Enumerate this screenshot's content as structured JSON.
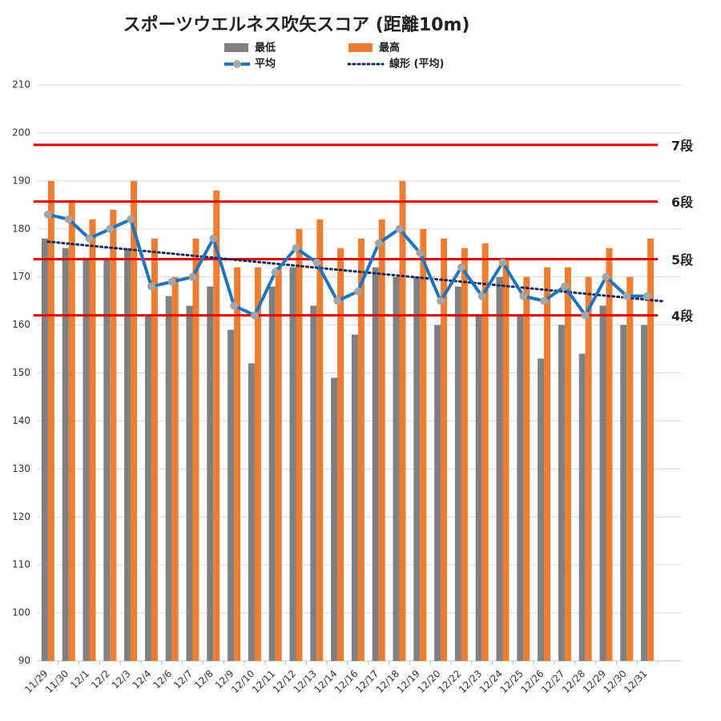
{
  "chart_data": {
    "type": "bar",
    "title": "スポーツウエルネス吹矢スコア (距離10m)",
    "categories": [
      "11/29",
      "11/30",
      "12/1",
      "12/2",
      "12/3",
      "12/4",
      "12/6",
      "12/7",
      "12/8",
      "12/9",
      "12/10",
      "12/11",
      "12/12",
      "12/13",
      "12/14",
      "12/16",
      "12/17",
      "12/18",
      "12/19",
      "12/20",
      "12/22",
      "12/23",
      "12/24",
      "12/25",
      "12/26",
      "12/27",
      "12/28",
      "12/29",
      "12/30",
      "12/31"
    ],
    "series": [
      {
        "name": "最低",
        "color": "#808080",
        "values": [
          178,
          176,
          174,
          174,
          176,
          162,
          166,
          164,
          168,
          159,
          152,
          168,
          172,
          164,
          149,
          158,
          172,
          170,
          170,
          160,
          168,
          162,
          170,
          162,
          153,
          160,
          154,
          164,
          160,
          160
        ]
      },
      {
        "name": "最高",
        "color": "#ed7d31",
        "values": [
          190,
          186,
          182,
          184,
          190,
          178,
          170,
          178,
          188,
          172,
          172,
          172,
          180,
          182,
          176,
          178,
          182,
          190,
          180,
          178,
          176,
          177,
          174,
          170,
          172,
          172,
          170,
          176,
          170,
          178
        ]
      },
      {
        "name": "平均",
        "color": "#1f74c0",
        "marker_color": "#a5a5a5",
        "values": [
          183,
          182,
          178,
          180,
          182,
          168,
          169,
          170,
          178,
          164,
          162,
          171,
          176,
          173,
          165,
          167,
          177,
          180,
          175,
          165,
          172,
          166,
          173,
          166,
          165,
          168,
          162,
          170,
          166,
          166
        ]
      }
    ],
    "trendline": {
      "name": "線形 (平均)",
      "color": "#1b2a5e"
    },
    "reference_lines": [
      {
        "label": "7段",
        "value": 197.5
      },
      {
        "label": "6段",
        "value": 185.7
      },
      {
        "label": "5段",
        "value": 173.7
      },
      {
        "label": "4段",
        "value": 162
      }
    ],
    "reference_color": "#e60000",
    "ylim": [
      90,
      210
    ],
    "yticks": [
      90,
      100,
      110,
      120,
      130,
      140,
      150,
      160,
      170,
      180,
      190,
      200,
      210
    ],
    "grid": true
  }
}
